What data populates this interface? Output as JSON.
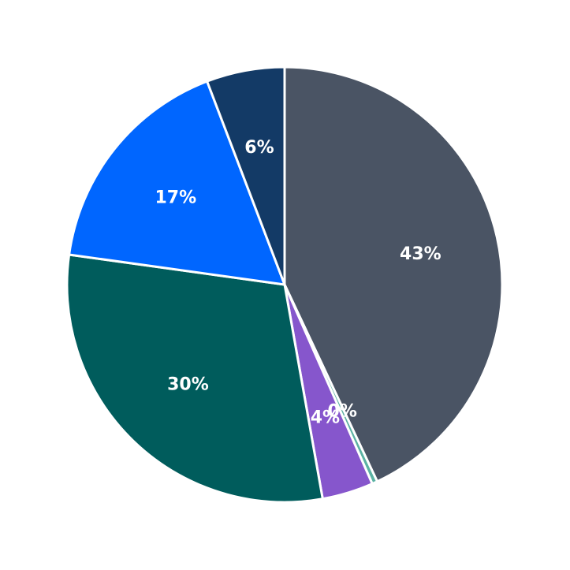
{
  "chart_data": {
    "type": "pie",
    "title": "",
    "legend": "none",
    "start_angle_deg": 90,
    "direction": "clockwise",
    "slices": [
      {
        "value": 43.0,
        "label": "43%",
        "color": "#4a5464"
      },
      {
        "value": 0.4,
        "label": "0%",
        "color": "#5bb2a3"
      },
      {
        "value": 3.8,
        "label": "4%",
        "color": "#8656cc"
      },
      {
        "value": 30.0,
        "label": "30%",
        "color": "#005c5c"
      },
      {
        "value": 17.0,
        "label": "17%",
        "color": "#0066ff"
      },
      {
        "value": 5.8,
        "label": "6%",
        "color": "#133a66"
      }
    ]
  }
}
